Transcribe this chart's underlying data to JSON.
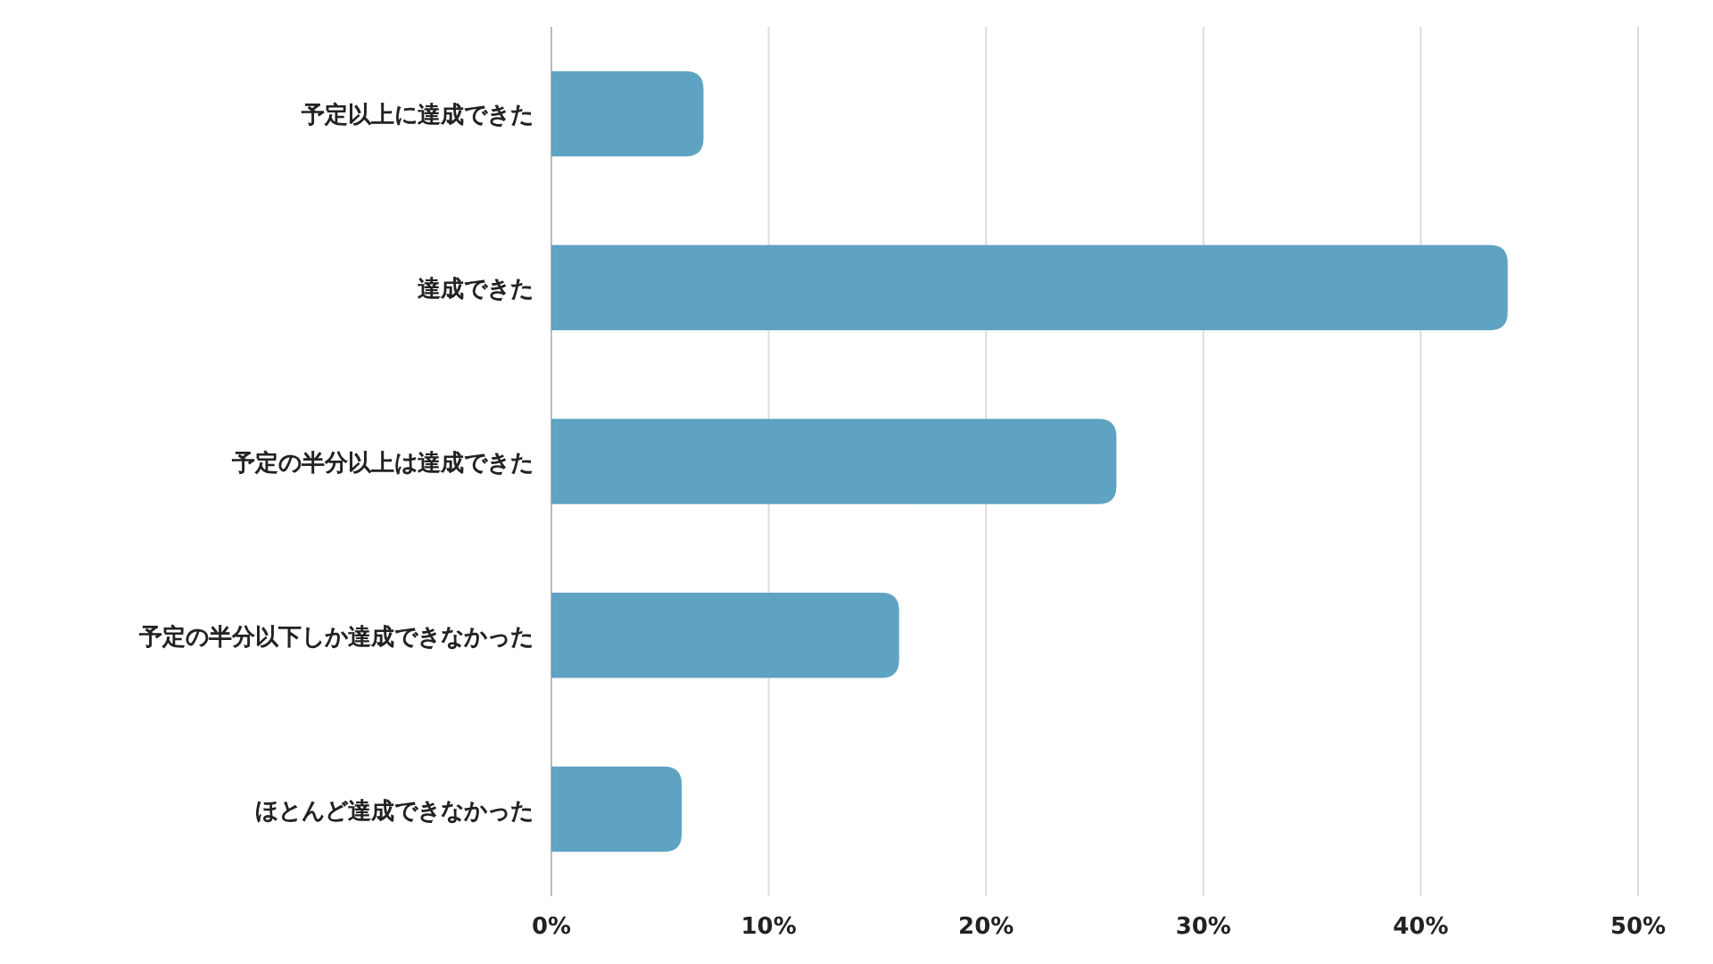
{
  "chart_data": {
    "type": "bar",
    "orientation": "horizontal",
    "categories": [
      "予定以上に達成できた",
      "達成できた",
      "予定の半分以上は達成できた",
      "予定の半分以下しか達成できなかった",
      "ほとんど達成できなかった"
    ],
    "values": [
      7,
      44,
      26,
      16,
      6
    ],
    "color": "#5fa3c2",
    "xlim": [
      0,
      50
    ],
    "xticks": [
      {
        "value": 0,
        "label": "0%"
      },
      {
        "value": 10,
        "label": "10%"
      },
      {
        "value": 20,
        "label": "20%"
      },
      {
        "value": 30,
        "label": "30%"
      },
      {
        "value": 40,
        "label": "40%"
      },
      {
        "value": 50,
        "label": "50%"
      }
    ],
    "grid": "x"
  }
}
